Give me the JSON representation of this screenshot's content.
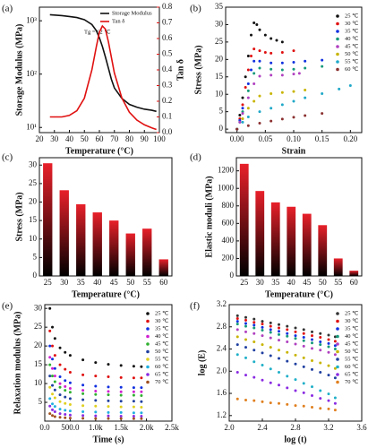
{
  "chart_data": [
    {
      "type": "line",
      "panel_label": "(a)",
      "x_label": "Temperature (°C)",
      "y_label": "Storage Modulus (MPa)",
      "y2_label": "Tan δ",
      "annotation": "Tg = 62 ℃",
      "ylog": true,
      "legend": "upper right",
      "x": [
        27,
        35,
        40,
        45,
        50,
        55,
        58,
        60,
        62,
        64,
        66,
        68,
        70,
        75,
        80,
        85,
        90,
        95,
        98
      ],
      "series": [
        {
          "name": "Storage Modulus",
          "color": "#111111",
          "values": [
            1300,
            1250,
            1200,
            1150,
            1050,
            850,
            650,
            480,
            330,
            210,
            130,
            80,
            55,
            35,
            27,
            24,
            22,
            21,
            20
          ]
        },
        {
          "name": "Tan δ",
          "color": "#e01010",
          "axis": "y2",
          "values": [
            0.1,
            0.1,
            0.11,
            0.14,
            0.22,
            0.4,
            0.55,
            0.64,
            0.68,
            0.66,
            0.58,
            0.48,
            0.38,
            0.22,
            0.13,
            0.08,
            0.05,
            0.03,
            0.02
          ]
        }
      ],
      "xlim": [
        20,
        100
      ],
      "xticks": [
        20,
        30,
        40,
        50,
        60,
        70,
        80,
        90,
        100
      ],
      "ylim": [
        8,
        1800
      ],
      "yticks": [
        {
          "value": 10,
          "label": "10¹"
        },
        {
          "value": 100,
          "label": "10²"
        },
        {
          "value": 1000,
          "label": "10³"
        }
      ],
      "y2lim": [
        0,
        0.8
      ],
      "y2ticks": [
        {
          "value": 0,
          "label": "0.0"
        },
        0.1,
        0.2,
        0.3,
        0.4,
        0.5,
        0.6,
        0.7,
        0.8
      ]
    },
    {
      "type": "scatter",
      "panel_label": "(b)",
      "x_label": "Strain",
      "y_label": "Stress (MPa)",
      "legend": "right",
      "series": [
        {
          "name": "25 ℃",
          "color": "#111111",
          "x": [
            0,
            0.005,
            0.01,
            0.015,
            0.02,
            0.025,
            0.03,
            0.035,
            0.04,
            0.05,
            0.06,
            0.07,
            0.08
          ],
          "values": [
            0,
            4,
            9,
            15,
            21,
            27,
            30.5,
            30,
            28.5,
            27,
            26,
            25.5,
            25
          ]
        },
        {
          "name": "30 ℃",
          "color": "#e01010",
          "x": [
            0,
            0.005,
            0.01,
            0.015,
            0.02,
            0.025,
            0.03,
            0.04,
            0.05,
            0.06,
            0.08,
            0.1
          ],
          "values": [
            0,
            3,
            7,
            12,
            17,
            21,
            23,
            22.5,
            22,
            21.8,
            22,
            22.5
          ]
        },
        {
          "name": "35 ℃",
          "color": "#1030e0",
          "x": [
            0,
            0.005,
            0.01,
            0.02,
            0.025,
            0.03,
            0.04,
            0.06,
            0.08,
            0.1,
            0.12,
            0.15
          ],
          "values": [
            0,
            2.5,
            6,
            13,
            17,
            19.5,
            19.5,
            19,
            19,
            19.2,
            19.5,
            19.8
          ]
        },
        {
          "name": "40 ℃",
          "color": "#159a7a",
          "x": [
            0,
            0.005,
            0.01,
            0.02,
            0.03,
            0.04,
            0.06,
            0.08,
            0.1,
            0.12,
            0.15
          ],
          "values": [
            0,
            2,
            5,
            11,
            16,
            17.5,
            17.2,
            17,
            17.2,
            17.5,
            18
          ]
        },
        {
          "name": "45 ℃",
          "color": "#b040c0",
          "x": [
            0,
            0.005,
            0.01,
            0.02,
            0.03,
            0.04,
            0.06,
            0.08,
            0.1,
            0.11
          ],
          "values": [
            0,
            2,
            4.5,
            9,
            13,
            15.2,
            15.5,
            15.5,
            15.8,
            16
          ]
        },
        {
          "name": "50 ℃",
          "color": "#c8b400",
          "x": [
            0,
            0.01,
            0.02,
            0.03,
            0.04,
            0.06,
            0.08,
            0.1,
            0.12
          ],
          "values": [
            0,
            3,
            6,
            8,
            9.5,
            10.2,
            10.5,
            10.8,
            11.2
          ]
        },
        {
          "name": "55 ℃",
          "color": "#20a8c8",
          "x": [
            0,
            0.01,
            0.02,
            0.04,
            0.06,
            0.08,
            0.1,
            0.12,
            0.15,
            0.18,
            0.2
          ],
          "values": [
            0,
            2,
            3.5,
            5,
            6,
            7,
            8,
            9,
            10.2,
            11.5,
            12.5
          ]
        },
        {
          "name": "60 ℃",
          "color": "#8b3030",
          "x": [
            0,
            0.02,
            0.04,
            0.06,
            0.08,
            0.1,
            0.12,
            0.15
          ],
          "values": [
            0,
            1,
            1.7,
            2.3,
            2.9,
            3.4,
            3.9,
            4.5
          ]
        }
      ],
      "xlim": [
        -0.02,
        0.22
      ],
      "xticks": [
        {
          "value": 0,
          "label": "0.00"
        },
        {
          "value": 0.05,
          "label": "0.05"
        },
        {
          "value": 0.1,
          "label": "0.10"
        },
        {
          "value": 0.15,
          "label": "0.15"
        },
        {
          "value": 0.2,
          "label": "0.20"
        }
      ],
      "ylim": [
        -1,
        35
      ],
      "yticks": [
        0,
        5,
        10,
        15,
        20,
        25,
        30,
        35
      ]
    },
    {
      "type": "bar",
      "panel_label": "(c)",
      "x_label": "Temperature (°C)",
      "y_label": "Stress (MPa)",
      "color": "#e8202a",
      "categories": [
        "25",
        "30",
        "35",
        "40",
        "45",
        "50",
        "55",
        "60"
      ],
      "values": [
        30.5,
        23.2,
        19.4,
        17.2,
        15.0,
        11.5,
        12.8,
        4.5
      ],
      "ylim": [
        0,
        32
      ],
      "yticks": [
        0,
        5,
        10,
        15,
        20,
        25,
        30
      ]
    },
    {
      "type": "bar",
      "panel_label": "(d)",
      "x_label": "Temperature (°C)",
      "y_label": "Elastic moduli (MPa)",
      "color": "#e8202a",
      "categories": [
        "25",
        "30",
        "35",
        "40",
        "45",
        "50",
        "55",
        "60"
      ],
      "values": [
        1280,
        970,
        840,
        790,
        710,
        580,
        200,
        60
      ],
      "ylim": [
        0,
        1350
      ],
      "yticks": [
        0,
        200,
        400,
        600,
        800,
        1000,
        1200
      ]
    },
    {
      "type": "scatter",
      "panel_label": "(e)",
      "x_label": "Time (s)",
      "y_label": "Relaxation modulus (MPa)",
      "legend": "right",
      "x": [
        100,
        150,
        200,
        300,
        400,
        500,
        750,
        1000,
        1250,
        1500,
        1750,
        1900
      ],
      "series": [
        {
          "name": "25 ℃",
          "color": "#111111",
          "values": [
            30,
            25,
            22,
            19.5,
            18.3,
            17.5,
            16.3,
            15.6,
            15.1,
            14.8,
            14.6,
            14.5
          ]
        },
        {
          "name": "30 ℃",
          "color": "#e01010",
          "values": [
            24,
            20,
            17.5,
            15,
            13.8,
            13,
            12.3,
            12,
            11.8,
            11.6,
            11.5,
            11.5
          ]
        },
        {
          "name": "35 ℃",
          "color": "#1030e0",
          "values": [
            20,
            16.5,
            14,
            11.8,
            10.8,
            10.2,
            9.6,
            9.3,
            9.1,
            9,
            8.9,
            8.9
          ]
        },
        {
          "name": "40 ℃",
          "color": "#d020d0",
          "values": [
            17,
            14,
            12,
            10,
            9.2,
            8.7,
            8.2,
            8,
            7.9,
            7.8,
            7.8,
            7.8
          ]
        },
        {
          "name": "45 ℃",
          "color": "#30b030",
          "values": [
            15,
            12,
            10.5,
            9,
            8.2,
            7.7,
            7.3,
            7.1,
            7,
            6.9,
            6.9,
            6.8
          ]
        },
        {
          "name": "50 ℃",
          "color": "#2040a0",
          "values": [
            12,
            9.5,
            8.3,
            7,
            6.4,
            6,
            5.7,
            5.5,
            5.4,
            5.3,
            5.3,
            5.2
          ]
        },
        {
          "name": "55 ℃",
          "color": "#e0d020",
          "values": [
            9,
            7.2,
            6.2,
            5.2,
            4.7,
            4.4,
            4.1,
            4,
            3.9,
            3.8,
            3.8,
            3.7
          ]
        },
        {
          "name": "60 ℃",
          "color": "#20b0e0",
          "values": [
            6,
            4.6,
            3.9,
            3.2,
            2.9,
            2.7,
            2.5,
            2.4,
            2.3,
            2.3,
            2.2,
            2.2
          ]
        },
        {
          "name": "65 ℃",
          "color": "#8a2be2",
          "values": [
            4,
            3,
            2.5,
            2,
            1.8,
            1.6,
            1.5,
            1.4,
            1.4,
            1.3,
            1.3,
            1.3
          ]
        },
        {
          "name": "70 ℃",
          "color": "#a05020",
          "values": [
            2,
            1.5,
            1.2,
            1,
            0.9,
            0.8,
            0.75,
            0.7,
            0.7,
            0.7,
            0.65,
            0.65
          ]
        }
      ],
      "xlim": [
        0,
        2500
      ],
      "xticks": [
        {
          "value": 0,
          "label": "0.0"
        },
        {
          "value": 500,
          "label": "500.0"
        },
        {
          "value": 1000,
          "label": "1.0k"
        },
        {
          "value": 1500,
          "label": "1.5k"
        },
        {
          "value": 2000,
          "label": "2.0k"
        },
        {
          "value": 2500,
          "label": "2.5k"
        }
      ],
      "ylim": [
        0,
        31
      ],
      "yticks": [
        5,
        10,
        15,
        20,
        25,
        30
      ]
    },
    {
      "type": "scatter",
      "panel_label": "(f)",
      "x_label": "log (t)",
      "y_label": "log (E)",
      "legend": "right",
      "x": [
        2.1,
        2.2,
        2.3,
        2.4,
        2.5,
        2.6,
        2.7,
        2.8,
        2.9,
        3.0,
        3.1,
        3.2,
        3.28
      ],
      "series": [
        {
          "name": "25 ℃",
          "color": "#333333",
          "values": [
            3.0,
            2.97,
            2.94,
            2.9,
            2.87,
            2.84,
            2.81,
            2.78,
            2.75,
            2.71,
            2.68,
            2.65,
            2.62
          ]
        },
        {
          "name": "30 ℃",
          "color": "#e01010",
          "values": [
            2.95,
            2.92,
            2.88,
            2.85,
            2.81,
            2.78,
            2.75,
            2.71,
            2.68,
            2.64,
            2.61,
            2.57,
            2.54
          ]
        },
        {
          "name": "35 ℃",
          "color": "#1030e0",
          "values": [
            2.9,
            2.86,
            2.83,
            2.79,
            2.75,
            2.72,
            2.68,
            2.64,
            2.61,
            2.57,
            2.53,
            2.5,
            2.46
          ]
        },
        {
          "name": "40 ℃",
          "color": "#159a7a",
          "values": [
            2.85,
            2.81,
            2.78,
            2.74,
            2.7,
            2.66,
            2.63,
            2.59,
            2.55,
            2.51,
            2.48,
            2.44,
            2.4
          ]
        },
        {
          "name": "45 ℃",
          "color": "#b040c0",
          "values": [
            2.75,
            2.71,
            2.68,
            2.64,
            2.6,
            2.56,
            2.53,
            2.49,
            2.45,
            2.41,
            2.38,
            2.34,
            2.3
          ]
        },
        {
          "name": "50 ℃",
          "color": "#c8b400",
          "values": [
            2.62,
            2.57,
            2.53,
            2.48,
            2.43,
            2.38,
            2.34,
            2.29,
            2.24,
            2.19,
            2.15,
            2.1,
            2.05
          ]
        },
        {
          "name": "55 ℃",
          "color": "#2040a0",
          "values": [
            2.48,
            2.43,
            2.38,
            2.33,
            2.28,
            2.23,
            2.18,
            2.13,
            2.08,
            2.03,
            1.98,
            1.93,
            1.88
          ]
        },
        {
          "name": "60 ℃",
          "color": "#20b0c8",
          "values": [
            2.3,
            2.24,
            2.17,
            2.11,
            2.04,
            1.98,
            1.91,
            1.85,
            1.78,
            1.72,
            1.65,
            1.59,
            1.52
          ]
        },
        {
          "name": "65 ℃",
          "color": "#8a2be2",
          "values": [
            1.98,
            1.93,
            1.89,
            1.84,
            1.79,
            1.75,
            1.7,
            1.65,
            1.61,
            1.56,
            1.51,
            1.47,
            1.42
          ]
        },
        {
          "name": "70 ℃",
          "color": "#e08020",
          "values": [
            1.5,
            1.48,
            1.47,
            1.45,
            1.43,
            1.42,
            1.4,
            1.38,
            1.37,
            1.35,
            1.33,
            1.32,
            1.3
          ]
        }
      ],
      "xlim": [
        2.0,
        3.6
      ],
      "xticks": [
        {
          "value": 2,
          "label": "2.0"
        },
        {
          "value": 2.4,
          "label": "2.4"
        },
        {
          "value": 2.8,
          "label": "2.8"
        },
        {
          "value": 3.2,
          "label": "3.2"
        },
        {
          "value": 3.6,
          "label": "3.6"
        }
      ],
      "ylim": [
        1.1,
        3.2
      ],
      "yticks": [
        {
          "value": 1.2,
          "label": "1.2"
        },
        {
          "value": 1.6,
          "label": "1.6"
        },
        {
          "value": 2,
          "label": "2.0"
        },
        {
          "value": 2.4,
          "label": "2.4"
        },
        {
          "value": 2.8,
          "label": "2.8"
        },
        {
          "value": 3.2,
          "label": "3.2"
        }
      ]
    }
  ]
}
